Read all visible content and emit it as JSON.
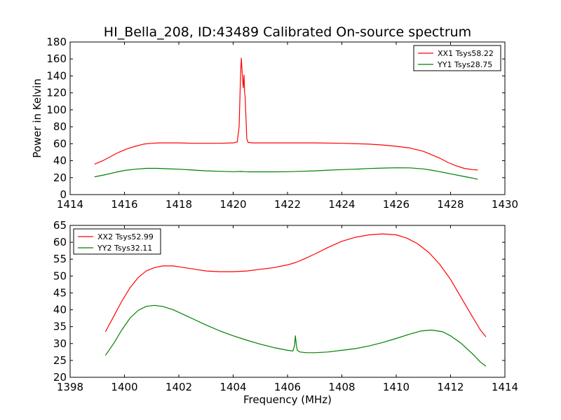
{
  "figure": {
    "title": "HI_Bella_208, ID:43489 Calibrated On-source spectrum",
    "ylabel": "Power in Kelvin",
    "xlabel": "Frequency (MHz)"
  },
  "chart_data": [
    {
      "type": "line",
      "title": "HI_Bella_208, ID:43489 Calibrated On-source spectrum",
      "xlabel": "",
      "ylabel": "Power in Kelvin",
      "xlim": [
        1414,
        1430
      ],
      "ylim": [
        0,
        180
      ],
      "xticks": [
        1414,
        1416,
        1418,
        1420,
        1422,
        1424,
        1426,
        1428,
        1430
      ],
      "yticks": [
        0,
        20,
        40,
        60,
        80,
        100,
        120,
        140,
        160,
        180
      ],
      "legend": "top-right",
      "grid": false,
      "series": [
        {
          "name": "XX1 Tsys58.22",
          "color": "#ff0000",
          "x": [
            1414.9,
            1415.2,
            1415.5,
            1415.8,
            1416.1,
            1416.4,
            1416.7,
            1417.0,
            1417.3,
            1417.6,
            1418.0,
            1418.5,
            1419.0,
            1419.5,
            1420.0,
            1420.15,
            1420.22,
            1420.27,
            1420.3,
            1420.33,
            1420.37,
            1420.4,
            1420.42,
            1420.44,
            1420.47,
            1420.5,
            1420.55,
            1420.7,
            1421.0,
            1421.5,
            1422.0,
            1423.0,
            1424.0,
            1425.0,
            1425.5,
            1426.0,
            1426.5,
            1427.0,
            1427.3,
            1427.6,
            1427.9,
            1428.2,
            1428.5,
            1428.8,
            1429.0
          ],
          "y": [
            36,
            40,
            45,
            50,
            54,
            57,
            59.5,
            60.5,
            61,
            61,
            61,
            60.5,
            60.5,
            60.5,
            61,
            62,
            80,
            140,
            161,
            145,
            126,
            141,
            120,
            115,
            92,
            66,
            61.5,
            61,
            61,
            61,
            61,
            61,
            60.5,
            59.5,
            58.5,
            57,
            55,
            51,
            47,
            43,
            38,
            34,
            31,
            29.5,
            29
          ]
        },
        {
          "name": "YY1 Tsys28.75",
          "color": "#008000",
          "x": [
            1414.9,
            1415.3,
            1415.7,
            1416.0,
            1416.4,
            1416.8,
            1417.2,
            1417.6,
            1418.0,
            1418.5,
            1419.0,
            1419.5,
            1420.0,
            1420.3,
            1420.45,
            1420.6,
            1421.0,
            1421.5,
            1422.0,
            1422.5,
            1423.0,
            1423.5,
            1424.0,
            1424.5,
            1425.0,
            1425.5,
            1426.0,
            1426.5,
            1427.0,
            1427.3,
            1427.6,
            1428.0,
            1428.4,
            1428.8,
            1429.0
          ],
          "y": [
            21,
            23.5,
            26.5,
            28.5,
            30,
            31,
            31,
            30.5,
            30,
            29,
            28,
            27.5,
            27,
            27.3,
            27,
            26.8,
            26.8,
            26.8,
            27,
            27.5,
            28,
            28.8,
            29.5,
            30,
            30.8,
            31.3,
            31.6,
            31.5,
            30.3,
            28.8,
            27,
            24.5,
            22,
            19.5,
            18
          ]
        }
      ]
    },
    {
      "type": "line",
      "title": "",
      "xlabel": "Frequency (MHz)",
      "ylabel": "",
      "xlim": [
        1398,
        1414
      ],
      "ylim": [
        20,
        65
      ],
      "xticks": [
        1398,
        1400,
        1402,
        1404,
        1406,
        1408,
        1410,
        1412,
        1414
      ],
      "yticks": [
        20,
        25,
        30,
        35,
        40,
        45,
        50,
        55,
        60,
        65
      ],
      "legend": "top-left",
      "grid": false,
      "series": [
        {
          "name": "XX2 Tsys52.99",
          "color": "#ff0000",
          "x": [
            1399.3,
            1399.6,
            1399.9,
            1400.2,
            1400.5,
            1400.8,
            1401.1,
            1401.4,
            1401.8,
            1402.2,
            1402.6,
            1403.0,
            1403.5,
            1404.0,
            1404.5,
            1405.0,
            1405.5,
            1406.0,
            1406.3,
            1406.6,
            1407.0,
            1407.5,
            1408.0,
            1408.5,
            1409.0,
            1409.5,
            1410.0,
            1410.4,
            1410.8,
            1411.2,
            1411.6,
            1412.0,
            1412.4,
            1412.8,
            1413.1,
            1413.3
          ],
          "y": [
            33.5,
            38,
            42.5,
            46.5,
            49.5,
            51.5,
            52.5,
            53,
            53,
            52.5,
            52,
            51.5,
            51.3,
            51.3,
            51.5,
            52,
            52.5,
            53.3,
            54,
            55,
            56.5,
            58.5,
            60.3,
            61.5,
            62.2,
            62.5,
            62.2,
            61.2,
            59.5,
            57,
            53.5,
            49,
            43.5,
            38,
            34,
            32
          ]
        },
        {
          "name": "YY2 Tsys32.11",
          "color": "#008000",
          "x": [
            1399.3,
            1399.6,
            1399.9,
            1400.2,
            1400.5,
            1400.8,
            1401.1,
            1401.4,
            1401.8,
            1402.2,
            1402.6,
            1403.0,
            1403.5,
            1404.0,
            1404.5,
            1405.0,
            1405.5,
            1406.0,
            1406.2,
            1406.26,
            1406.29,
            1406.32,
            1406.36,
            1406.45,
            1406.7,
            1407.0,
            1407.5,
            1408.0,
            1408.5,
            1409.0,
            1409.5,
            1410.0,
            1410.5,
            1410.9,
            1411.3,
            1411.7,
            1412.0,
            1412.4,
            1412.8,
            1413.1,
            1413.3
          ],
          "y": [
            26.5,
            30,
            34,
            37.5,
            39.8,
            41,
            41.3,
            41,
            40,
            38.5,
            37,
            35.5,
            33.8,
            32.3,
            31,
            29.8,
            28.8,
            28,
            27.8,
            29.5,
            32.3,
            30,
            28,
            27.5,
            27.3,
            27.3,
            27.5,
            28,
            28.5,
            29.3,
            30.3,
            31.5,
            32.8,
            33.7,
            34,
            33.5,
            32.3,
            30,
            27,
            24.5,
            23.3
          ]
        }
      ]
    }
  ]
}
